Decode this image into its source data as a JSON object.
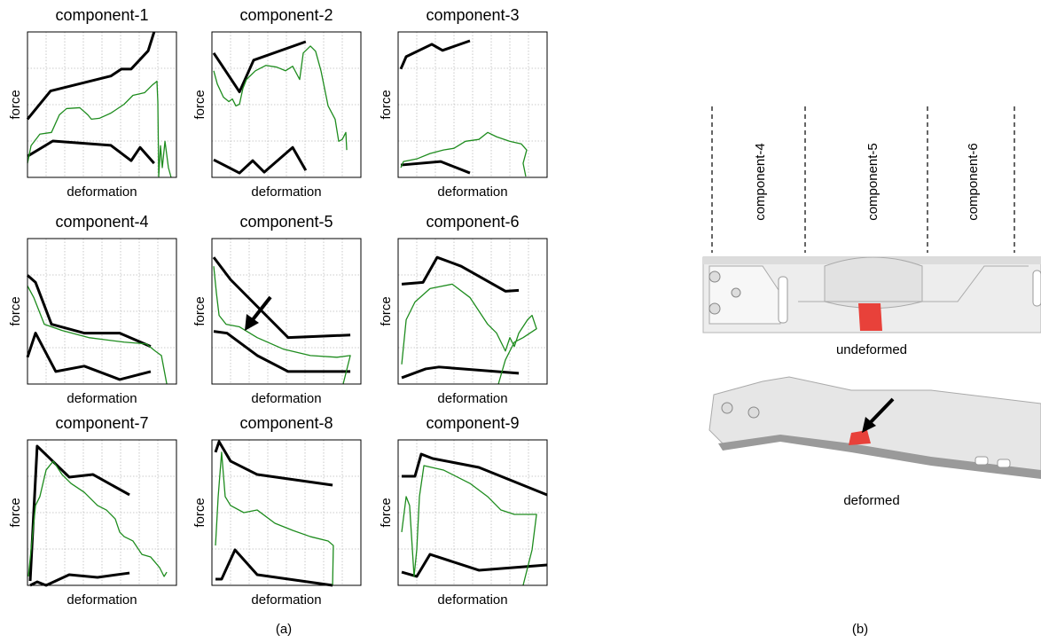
{
  "chart_data": [
    {
      "type": "line",
      "title": "component-1",
      "xlabel": "deformation",
      "ylabel": "force",
      "xlim": [
        0,
        100
      ],
      "ylim": [
        0,
        100
      ],
      "grid": true,
      "series": [
        {
          "color": "#000000",
          "x": [
            0,
            15.5,
            56,
            63,
            69.6,
            81,
            85
          ],
          "values": [
            40,
            59.4,
            69.7,
            74.5,
            74.5,
            87,
            100
          ]
        },
        {
          "color": "#000000",
          "x": [
            0,
            17,
            56,
            69.6,
            75.6,
            85
          ],
          "values": [
            14.5,
            25,
            22,
            11.5,
            20.6,
            9.7
          ]
        },
        {
          "color": "#1e8c1e",
          "x": [
            0,
            2.4,
            8.3,
            16.1,
            21.4,
            26.2,
            35.1,
            40.5,
            42.9,
            48.2,
            56,
            64.9,
            70.8,
            78.6,
            83.9,
            86.9,
            87.5,
            88.1,
            89.3,
            90.5,
            92.3,
            94.6,
            96.4
          ],
          "values": [
            9.7,
            21.8,
            29.7,
            30.9,
            43,
            47.3,
            47.9,
            43,
            40,
            40.6,
            44.2,
            50.3,
            56.4,
            58.2,
            63.6,
            66.1,
            52.1,
            0.6,
            21.8,
            6.7,
            24.8,
            6.7,
            0
          ]
        }
      ]
    },
    {
      "type": "line",
      "title": "component-2",
      "xlabel": "deformation",
      "ylabel": "force",
      "xlim": [
        0,
        100
      ],
      "ylim": [
        0,
        100
      ],
      "grid": true,
      "series": [
        {
          "color": "#000000",
          "x": [
            1.2,
            18.5,
            28,
            63
          ],
          "values": [
            85.5,
            58.8,
            80.6,
            93.3
          ]
        },
        {
          "color": "#000000",
          "x": [
            1.2,
            18.5,
            27.4,
            35.1,
            54.2,
            63
          ],
          "values": [
            12.1,
            3,
            11.5,
            3.6,
            20.6,
            4.8
          ]
        },
        {
          "color": "#1e8c1e",
          "x": [
            1.2,
            3.6,
            7.7,
            11.3,
            13.7,
            16.1,
            18.5,
            20.8,
            23.2,
            29.2,
            36.3,
            43.5,
            49.4,
            54.2,
            58.9,
            61.3,
            66.1,
            69.6,
            73.2,
            78,
            82.7,
            85.1,
            87.5,
            89.9,
            90.5
          ],
          "values": [
            73.3,
            64.2,
            55.2,
            52.1,
            53.9,
            49.1,
            50.3,
            61.2,
            67.3,
            73.3,
            77,
            75.8,
            73.3,
            76.4,
            67.3,
            85.5,
            90.3,
            86.7,
            73.3,
            49.1,
            40,
            24.8,
            26.1,
            30.9,
            18.8
          ]
        }
      ]
    },
    {
      "type": "line",
      "title": "component-3",
      "xlabel": "deformation",
      "ylabel": "force",
      "xlim": [
        0,
        100
      ],
      "ylim": [
        0,
        100
      ],
      "grid": true,
      "series": [
        {
          "color": "#000000",
          "x": [
            1.8,
            5.4,
            22.6,
            29.8,
            48.2
          ],
          "values": [
            74.5,
            83,
            91.5,
            87.3,
            93.9
          ]
        },
        {
          "color": "#000000",
          "x": [
            1.8,
            28.6,
            48.2
          ],
          "values": [
            8.5,
            10.9,
            3
          ]
        },
        {
          "color": "#1e8c1e",
          "x": [
            1.8,
            3.6,
            12.5,
            21.4,
            30.4,
            37.5,
            45.2,
            54.2,
            60.1,
            66.1,
            75,
            82.7,
            86.3,
            83.9,
            85.7
          ],
          "values": [
            6.7,
            10.9,
            12.7,
            16.4,
            18.8,
            20,
            24.8,
            26.1,
            30.9,
            27.9,
            24.8,
            23,
            18.8,
            9.7,
            0.6
          ]
        }
      ]
    },
    {
      "type": "line",
      "title": "component-4",
      "xlabel": "deformation",
      "ylabel": "force",
      "xlim": [
        0,
        100
      ],
      "ylim": [
        0,
        100
      ],
      "grid": true,
      "series": [
        {
          "color": "#000000",
          "x": [
            0,
            5.4,
            16.1,
            38.1,
            61.9,
            82.7
          ],
          "values": [
            74.8,
            69.9,
            41.1,
            35,
            35,
            25.8
          ]
        },
        {
          "color": "#000000",
          "x": [
            0,
            5.4,
            19,
            38.1,
            61.9,
            82.7
          ],
          "values": [
            18.4,
            35,
            8.6,
            12.3,
            3.1,
            8.6
          ]
        },
        {
          "color": "#1e8c1e",
          "x": [
            0,
            4.2,
            11.3,
            23.2,
            41.1,
            64.9,
            79.8,
            85.7,
            89.9,
            93.5
          ],
          "values": [
            67.5,
            59.5,
            41.1,
            36.8,
            31.9,
            28.8,
            27.6,
            22.7,
            19.6,
            0
          ]
        }
      ]
    },
    {
      "type": "line",
      "title": "component-5",
      "xlabel": "deformation",
      "ylabel": "force",
      "xlim": [
        0,
        100
      ],
      "ylim": [
        0,
        100
      ],
      "grid": true,
      "series": [
        {
          "color": "#000000",
          "x": [
            1.2,
            12.5,
            51.2,
            92.9
          ],
          "values": [
            87.1,
            71.8,
            31.9,
            33.7
          ]
        },
        {
          "color": "#000000",
          "x": [
            1.2,
            10.1,
            30.4,
            51.2,
            92.9
          ],
          "values": [
            36.2,
            35,
            19.6,
            8.6,
            8.6
          ]
        },
        {
          "color": "#1e8c1e",
          "x": [
            1.2,
            3,
            4.8,
            9.5,
            18.5,
            30.4,
            48.2,
            66.1,
            83.9,
            92.9,
            88.1
          ],
          "values": [
            81,
            62.6,
            47.2,
            41.1,
            39.3,
            31.9,
            23.9,
            19.6,
            18.4,
            19.6,
            0
          ]
        }
      ]
    },
    {
      "type": "line",
      "title": "component-6",
      "xlabel": "deformation",
      "ylabel": "force",
      "xlim": [
        0,
        100
      ],
      "ylim": [
        0,
        100
      ],
      "grid": true,
      "series": [
        {
          "color": "#000000",
          "x": [
            2.4,
            16.7,
            26.2,
            42.3,
            72,
            81
          ],
          "values": [
            68.7,
            69.9,
            87.1,
            81,
            63.8,
            64.4
          ]
        },
        {
          "color": "#000000",
          "x": [
            2.4,
            18.5,
            27.4,
            81
          ],
          "values": [
            4.3,
            10.4,
            11.7,
            7.4
          ]
        },
        {
          "color": "#1e8c1e",
          "x": [
            2.4,
            5.4,
            11.3,
            21.4,
            36.3,
            48.2,
            60.1,
            66.1,
            72,
            75,
            78,
            81,
            86.9,
            89.9,
            92.9,
            83.9,
            78,
            72,
            67.3
          ],
          "values": [
            13.5,
            44.2,
            56.4,
            65.6,
            68.7,
            59.5,
            41.1,
            35,
            22.7,
            31.9,
            25.8,
            35,
            44.2,
            47.2,
            38,
            31.9,
            28.8,
            16.6,
            0
          ]
        }
      ]
    },
    {
      "type": "line",
      "title": "component-7",
      "xlabel": "deformation",
      "ylabel": "force",
      "xlim": [
        0,
        100
      ],
      "ylim": [
        0,
        100
      ],
      "grid": true,
      "series": [
        {
          "color": "#000000",
          "x": [
            1.8,
            6.5,
            28,
            44,
            68.5
          ],
          "values": [
            3,
            95.7,
            74.4,
            76.2,
            62.2
          ]
        },
        {
          "color": "#000000",
          "x": [
            1.8,
            6.5,
            12.5,
            28,
            47,
            68.5
          ],
          "values": [
            0,
            2.4,
            0,
            7.3,
            5.5,
            8.5
          ]
        },
        {
          "color": "#1e8c1e",
          "x": [
            0.6,
            2.4,
            5.4,
            8.3,
            12.5,
            17.3,
            23.2,
            29.2,
            38.1,
            47,
            53,
            58.9,
            61.9,
            64.9,
            70.8,
            76.8,
            82.7,
            88.7,
            91.7,
            93.5
          ],
          "values": [
            6.1,
            24.4,
            54.9,
            61,
            79.3,
            85.4,
            76.2,
            70.1,
            64,
            54.9,
            51.8,
            45.7,
            36.6,
            33.5,
            30.5,
            21.3,
            19.5,
            12.2,
            6.1,
            9.1
          ]
        }
      ]
    },
    {
      "type": "line",
      "title": "component-8",
      "xlabel": "deformation",
      "ylabel": "force",
      "xlim": [
        0,
        100
      ],
      "ylim": [
        0,
        100
      ],
      "grid": true,
      "series": [
        {
          "color": "#000000",
          "x": [
            2.4,
            4.8,
            12.5,
            30.4,
            81
          ],
          "values": [
            91.5,
            98.8,
            85.4,
            76.2,
            68.9
          ]
        },
        {
          "color": "#000000",
          "x": [
            2.4,
            6.5,
            15.5,
            30.4,
            81
          ],
          "values": [
            4.3,
            4.3,
            24.4,
            7.3,
            0
          ]
        },
        {
          "color": "#1e8c1e",
          "x": [
            2.4,
            4.2,
            6.5,
            8.9,
            12.5,
            21.4,
            30.4,
            42.3,
            54.2,
            66.1,
            78,
            81.5,
            81
          ],
          "values": [
            27.4,
            61,
            91.5,
            61,
            54.9,
            50,
            51.8,
            42.7,
            37.8,
            33.5,
            30.5,
            27.4,
            0
          ]
        }
      ]
    },
    {
      "type": "line",
      "title": "component-9",
      "xlabel": "deformation",
      "ylabel": "force",
      "xlim": [
        0,
        100
      ],
      "ylim": [
        0,
        100
      ],
      "grid": true,
      "series": [
        {
          "color": "#000000",
          "x": [
            2.4,
            11.3,
            15.5,
            23.2,
            54.2,
            100
          ],
          "values": [
            75,
            75,
            90.2,
            87.2,
            81.1,
            62.2
          ]
        },
        {
          "color": "#000000",
          "x": [
            2.4,
            12.5,
            21.4,
            54.2,
            100
          ],
          "values": [
            9.1,
            6.1,
            21.3,
            10.4,
            14
          ]
        },
        {
          "color": "#1e8c1e",
          "x": [
            2.4,
            5.4,
            7.7,
            10.7,
            12.5,
            14.3,
            17.3,
            30.4,
            48.2,
            60.1,
            69,
            78,
            92.9,
            89.9,
            83.9
          ],
          "values": [
            36.6,
            61,
            54.9,
            6.1,
            24.4,
            61,
            82.3,
            79.3,
            70.1,
            61,
            51.8,
            48.8,
            48.8,
            24.4,
            0
          ]
        }
      ]
    }
  ],
  "panel_a_label": "(a)",
  "diagram": {
    "label": "(b)",
    "regions": [
      "component-4",
      "component-5",
      "component-6"
    ],
    "undeformed_label": "undeformed",
    "deformed_label": "deformed"
  }
}
